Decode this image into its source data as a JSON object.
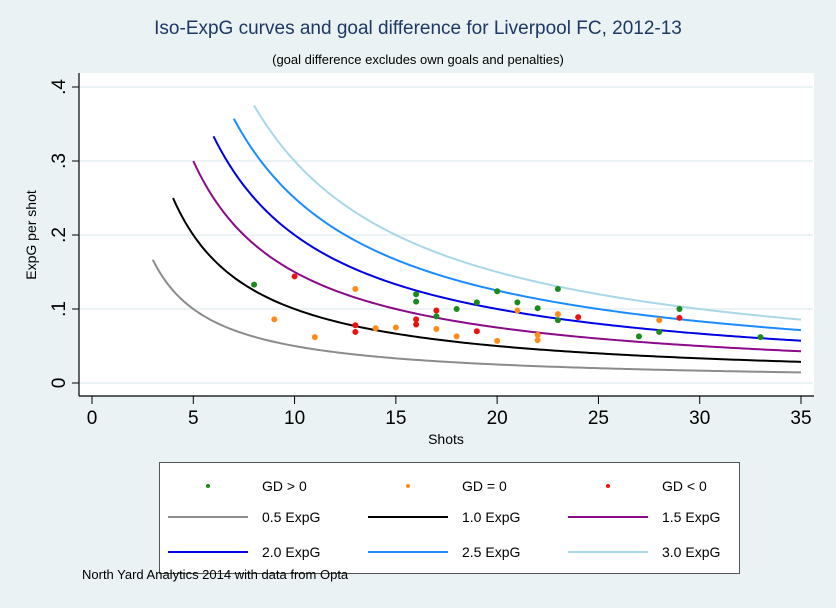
{
  "chart_data": {
    "type": "scatter",
    "title": "Iso-ExpG curves and goal difference for Liverpool FC, 2012-13",
    "subtitle": "(goal difference excludes own goals and penalties)",
    "xlabel": "Shots",
    "ylabel": "ExpG per shot",
    "xlim": [
      0,
      35
    ],
    "ylim": [
      0,
      0.4
    ],
    "x_ticks": [
      0,
      5,
      10,
      15,
      20,
      25,
      30,
      35
    ],
    "x_tick_labels": [
      "0",
      "5",
      "10",
      "15",
      "20",
      "25",
      "30",
      "35"
    ],
    "y_ticks": [
      0,
      0.1,
      0.2,
      0.3,
      0.4
    ],
    "y_tick_labels": [
      "0",
      ".1",
      ".2",
      ".3",
      ".4"
    ],
    "grid": true,
    "legend_position": "bottom",
    "note": "North Yard Analytics 2014 with data from Opta",
    "point_series": [
      {
        "name": "GD > 0",
        "color": "#1a8a1a",
        "points": [
          [
            8,
            0.133
          ],
          [
            16,
            0.12
          ],
          [
            16,
            0.11
          ],
          [
            17,
            0.09
          ],
          [
            18,
            0.1
          ],
          [
            19,
            0.109
          ],
          [
            20,
            0.124
          ],
          [
            21,
            0.109
          ],
          [
            22,
            0.101
          ],
          [
            23,
            0.127
          ],
          [
            23,
            0.085
          ],
          [
            27,
            0.063
          ],
          [
            28,
            0.069
          ],
          [
            29,
            0.1
          ],
          [
            33,
            0.062
          ]
        ]
      },
      {
        "name": "GD = 0",
        "color": "#ff8c1a",
        "points": [
          [
            9,
            0.086
          ],
          [
            11,
            0.062
          ],
          [
            13,
            0.127
          ],
          [
            14,
            0.074
          ],
          [
            15,
            0.075
          ],
          [
            17,
            0.073
          ],
          [
            18,
            0.063
          ],
          [
            20,
            0.057
          ],
          [
            21,
            0.098
          ],
          [
            22,
            0.065
          ],
          [
            22,
            0.058
          ],
          [
            23,
            0.093
          ],
          [
            28,
            0.085
          ]
        ]
      },
      {
        "name": "GD < 0",
        "color": "#ee1111",
        "points": [
          [
            10,
            0.144
          ],
          [
            13,
            0.078
          ],
          [
            13,
            0.069
          ],
          [
            16,
            0.086
          ],
          [
            16,
            0.079
          ],
          [
            17,
            0.098
          ],
          [
            19,
            0.07
          ],
          [
            24,
            0.089
          ],
          [
            29,
            0.088
          ]
        ]
      }
    ],
    "curve_series": [
      {
        "name": "0.5 ExpG",
        "expg": 0.5,
        "x_start": 3,
        "x_end": 35,
        "color": "#8c8c8c"
      },
      {
        "name": "1.0 ExpG",
        "expg": 1.0,
        "x_start": 4,
        "x_end": 35,
        "color": "#000000"
      },
      {
        "name": "1.5 ExpG",
        "expg": 1.5,
        "x_start": 5,
        "x_end": 35,
        "color": "#8a0a8a"
      },
      {
        "name": "2.0 ExpG",
        "expg": 2.0,
        "x_start": 6,
        "x_end": 35,
        "color": "#0000e6"
      },
      {
        "name": "2.5 ExpG",
        "expg": 2.5,
        "x_start": 7,
        "x_end": 35,
        "color": "#1a8cff"
      },
      {
        "name": "3.0 ExpG",
        "expg": 3.0,
        "x_start": 8,
        "x_end": 35,
        "color": "#a8d8e8"
      }
    ]
  },
  "legend": {
    "items": [
      {
        "label": "GD > 0",
        "kind": "dot",
        "color": "#1a8a1a"
      },
      {
        "label": "GD = 0",
        "kind": "dot",
        "color": "#ff8c1a"
      },
      {
        "label": "GD < 0",
        "kind": "dot",
        "color": "#ee1111"
      },
      {
        "label": "0.5 ExpG",
        "kind": "line",
        "color": "#8c8c8c"
      },
      {
        "label": "1.0 ExpG",
        "kind": "line",
        "color": "#000000"
      },
      {
        "label": "1.5 ExpG",
        "kind": "line",
        "color": "#8a0a8a"
      },
      {
        "label": "2.0 ExpG",
        "kind": "line",
        "color": "#0000e6"
      },
      {
        "label": "2.5 ExpG",
        "kind": "line",
        "color": "#1a8cff"
      },
      {
        "label": "3.0 ExpG",
        "kind": "line",
        "color": "#a8d8e8"
      }
    ]
  }
}
